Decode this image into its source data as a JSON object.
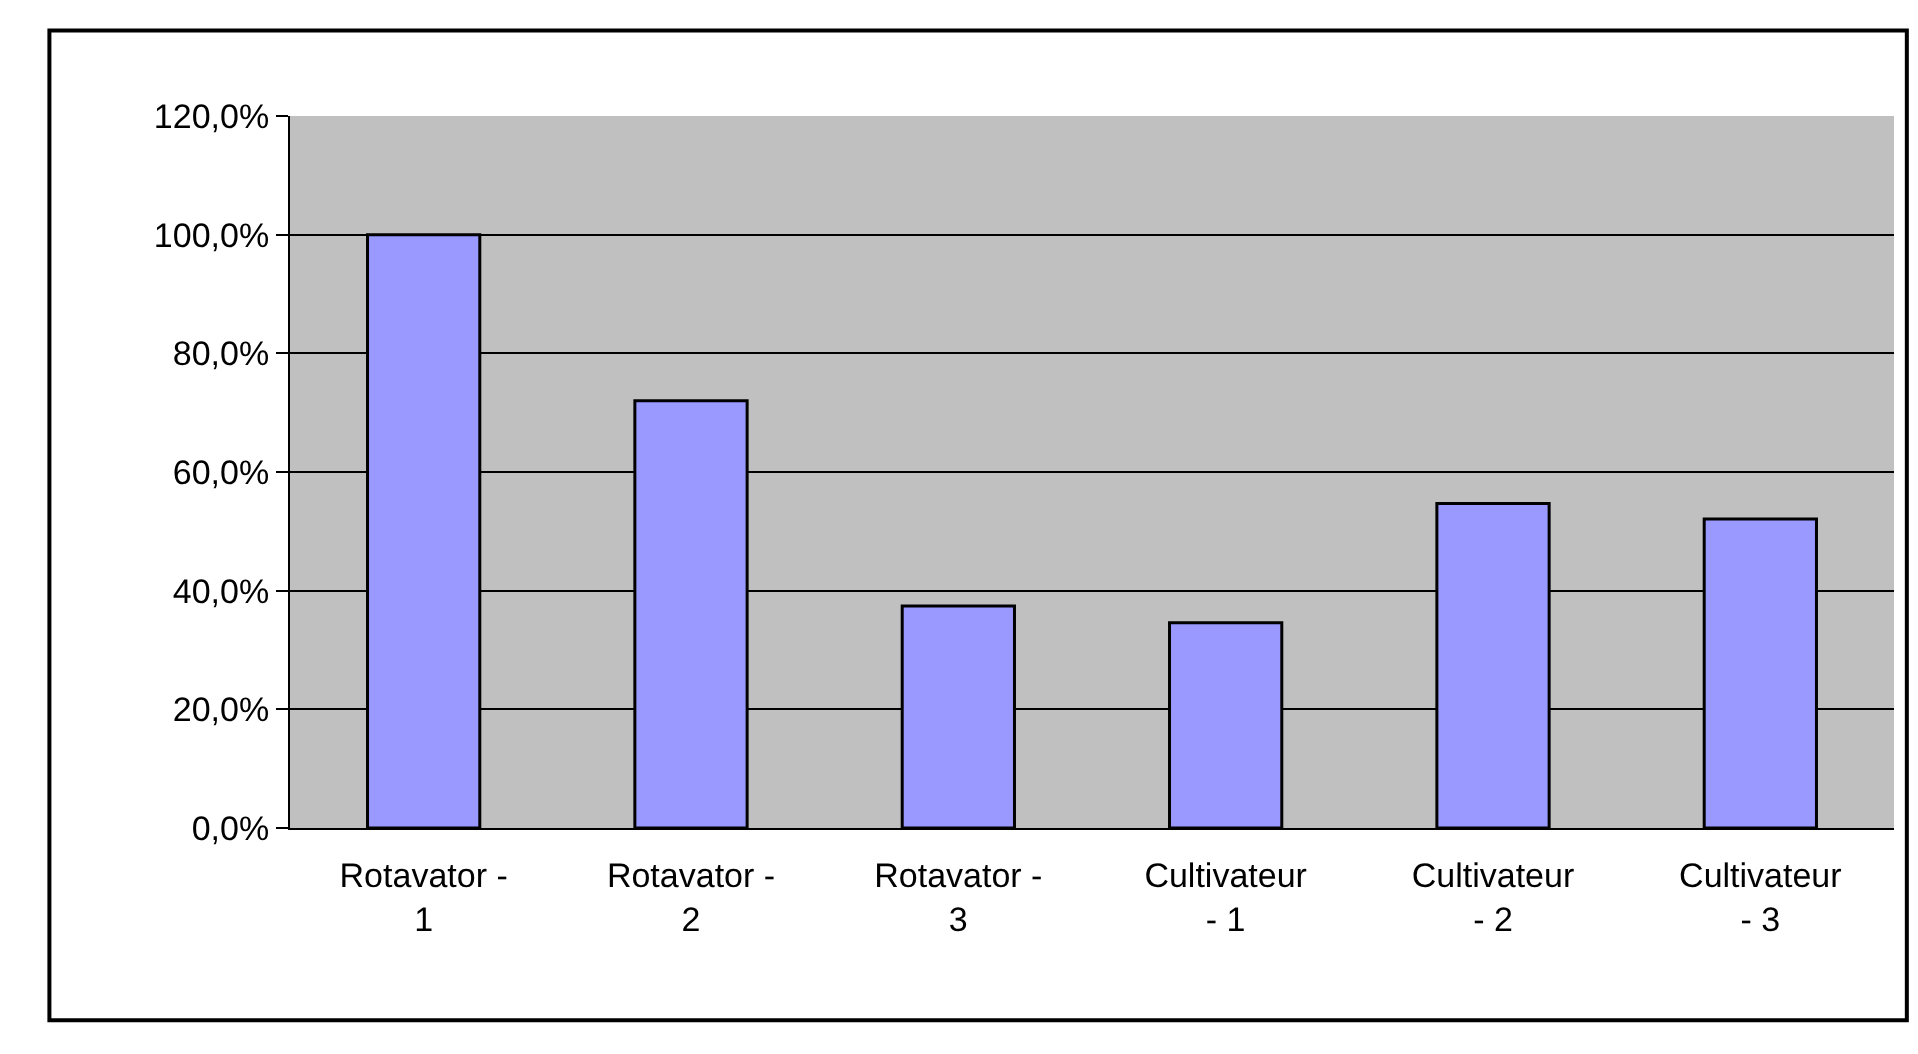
{
  "chart_data": {
    "type": "bar",
    "categories": [
      "Rotavator - 1",
      "Rotavator - 2",
      "Rotavator - 3",
      "Cultivateur - 1",
      "Cultivateur - 2",
      "Cultivateur - 3"
    ],
    "values": [
      100,
      72,
      37.4,
      34.6,
      54.7,
      52.1
    ],
    "color": "#9999ff",
    "ylim": [
      0,
      120
    ],
    "yticks": [
      {
        "value": 0,
        "label": "0,0%"
      },
      {
        "value": 20,
        "label": "20,0%"
      },
      {
        "value": 40,
        "label": "40,0%"
      },
      {
        "value": 60,
        "label": "60,0%"
      },
      {
        "value": 80,
        "label": "80,0%"
      },
      {
        "value": 100,
        "label": "100,0%"
      },
      {
        "value": 120,
        "label": "120,0%"
      }
    ],
    "grid": "y",
    "legend": false
  }
}
